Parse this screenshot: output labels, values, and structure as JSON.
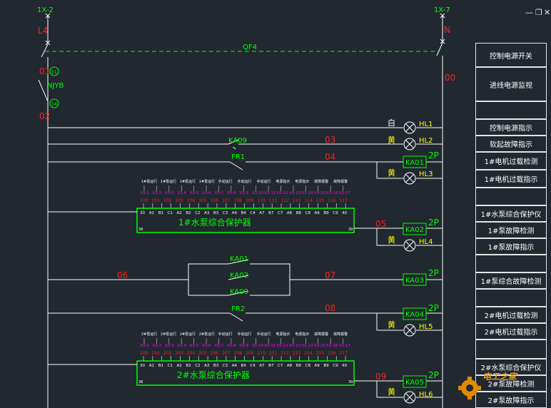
{
  "colors": {
    "bg": "#212830",
    "wire": "#ffffff",
    "red": "#ff2020",
    "green": "#00ff00",
    "yellow": "#ffff00",
    "magenta": "#ff00ff",
    "grey": "#c8c8c8"
  },
  "window_controls": {
    "minimize": "—",
    "restore": "❐",
    "close": "✕"
  },
  "top_labels": {
    "left_terminal": "1X-2",
    "right_terminal": "1X-7",
    "left_phase": "L4",
    "right_phase": "N"
  },
  "breaker": {
    "label": "QF4"
  },
  "left_wires": {
    "w01": "01",
    "w02": "02",
    "relay": "NJYB",
    "c11": "11",
    "c14": "14"
  },
  "right_wire": {
    "w00": "00"
  },
  "row1": {
    "color": "白",
    "lamp": "HL1"
  },
  "row2": {
    "contact": "KA09",
    "wire": "03",
    "color": "黄",
    "lamp": "HL2"
  },
  "row3": {
    "contact": "FR1",
    "wire": "04",
    "relay": "KA01",
    "poles": "2P",
    "color": "黄",
    "lamp": "HL3"
  },
  "protector1": {
    "title": "1#水泵综合保护器",
    "heads": [
      "1#泵运行",
      "1#泵运行",
      "1#泵运行",
      "1#泵运行",
      "手动运行",
      "手动运行",
      "手动运行",
      "电源指示",
      "电源指示",
      "故障报警",
      "故障报警"
    ],
    "xcodes": [
      "X3-1",
      "X3-2",
      "X3-3",
      "X3-4",
      "X3-5",
      "X3-6",
      "X3-7",
      "X3-8",
      "X3-9",
      "X3-10",
      "X3-11",
      "X3-12",
      "X3-13",
      "X3-14",
      "X3-15",
      "X3-16",
      "X3-17"
    ],
    "nums": [
      "100",
      "101",
      "102",
      "103",
      "104",
      "105",
      "106",
      "107",
      "108",
      "109",
      "110",
      "111",
      "112",
      "113",
      "114",
      "115",
      "116",
      "117"
    ],
    "pins": [
      "30",
      "A1",
      "B1",
      "C1",
      "A2",
      "B2",
      "C2",
      "A3",
      "B3",
      "C3",
      "A4",
      "B4",
      "C4",
      "A7",
      "B7",
      "C7",
      "A8",
      "B8",
      "C8",
      "A9",
      "B9",
      "C9",
      "40"
    ],
    "corner_tl": "38",
    "corner_br": "39",
    "corner_bl": "38",
    "wire": "05",
    "relay": "KA02",
    "poles": "2P",
    "color": "黄",
    "lamp": "HL4"
  },
  "row_ka03": {
    "c1": "KA01",
    "c2": "KA02",
    "c3": "KA09",
    "w_left": "06",
    "w_right": "07",
    "relay": "KA03",
    "poles": "2P"
  },
  "row_fr2": {
    "contact": "FR2",
    "wire": "08",
    "relay": "KA04",
    "poles": "2P",
    "color": "黄",
    "lamp": "HL5"
  },
  "protector2": {
    "title": "2#水泵综合保护器",
    "heads": [
      "2#泵运行",
      "2#泵运行",
      "2#泵运行",
      "2#泵运行",
      "手动运行",
      "手动运行",
      "手动运行",
      "电源指示",
      "电源指示",
      "故障报警",
      "故障报警"
    ],
    "xcodes": [
      "X3-1",
      "X3-2",
      "X3-3",
      "X3-4",
      "X3-5",
      "X3-6",
      "X3-7",
      "X3-8",
      "X3-9",
      "X3-10",
      "X3-11",
      "X3-12",
      "X3-13",
      "X3-14",
      "X3-15",
      "X3-16",
      "X3-17"
    ],
    "nums": [
      "200",
      "201",
      "202",
      "203",
      "204",
      "205",
      "206",
      "207",
      "208",
      "209",
      "210",
      "211",
      "212",
      "213",
      "214",
      "215",
      "216",
      "217"
    ],
    "pins": [
      "30",
      "A1",
      "B1",
      "C1",
      "A2",
      "B2",
      "C2",
      "A3",
      "B3",
      "C3",
      "A4",
      "B4",
      "C4",
      "A7",
      "B7",
      "C7",
      "A8",
      "B8",
      "C8",
      "A9",
      "B9",
      "C9",
      "40"
    ],
    "corner_tl": "38",
    "corner_br": "39",
    "corner_bl": "38",
    "wire": "09",
    "relay": "KA05",
    "poles": "2P",
    "color": "黄",
    "lamp": "HL6"
  },
  "sidebar": [
    {
      "label": "控制电源开关"
    },
    {
      "label": "进线电源监视"
    },
    {
      "label": ""
    },
    {
      "label": "控制电源指示"
    },
    {
      "label": "软起故障指示"
    },
    {
      "label": "1#电机过载检测"
    },
    {
      "label": "1#电机过载指示"
    },
    {
      "label": ""
    },
    {
      "label": "1#水泵综合保护仪"
    },
    {
      "label": "1#泵故障检测"
    },
    {
      "label": "1#泵故障指示"
    },
    {
      "label": ""
    },
    {
      "label": "1#泵综合故障检测"
    },
    {
      "label": ""
    },
    {
      "label": "2#电机过载检测"
    },
    {
      "label": "2#电机过载指示"
    },
    {
      "label": ""
    },
    {
      "label": "2#水泵综合保护仪"
    },
    {
      "label": "2#泵故障检测"
    },
    {
      "label": "2#泵故障指示"
    }
  ],
  "watermark": {
    "text": "电工之家"
  }
}
